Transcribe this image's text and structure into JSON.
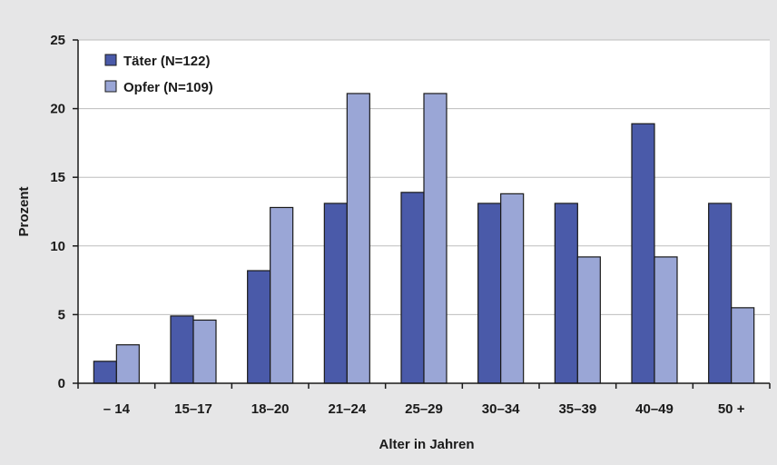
{
  "chart_data": {
    "type": "bar",
    "title": "",
    "xlabel": "Alter in Jahren",
    "ylabel": "Prozent",
    "categories": [
      "– 14",
      "15–17",
      "18–20",
      "21–24",
      "25–29",
      "30–34",
      "35–39",
      "40–49",
      "50 +"
    ],
    "series": [
      {
        "name": "Täter (N=122)",
        "color": "#4a5aa9",
        "values": [
          1.6,
          4.9,
          8.2,
          13.1,
          13.9,
          13.1,
          13.1,
          18.9,
          13.1
        ]
      },
      {
        "name": "Opfer (N=109)",
        "color": "#9aa6d6",
        "values": [
          2.8,
          4.6,
          12.8,
          21.1,
          21.1,
          13.8,
          9.2,
          9.2,
          5.5
        ]
      }
    ],
    "ylim": [
      0,
      25
    ],
    "yticks": [
      0,
      5,
      10,
      15,
      20,
      25
    ],
    "grid": true,
    "legend_position": "top-left"
  }
}
